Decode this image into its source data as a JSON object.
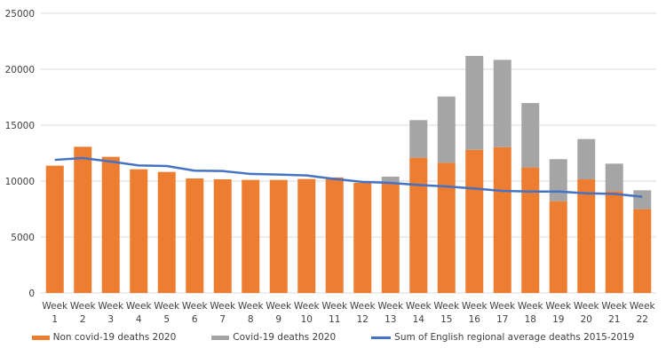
{
  "chart_data": {
    "type": "bar",
    "stacked": true,
    "categories": [
      "Week 1",
      "Week 2",
      "Week 3",
      "Week 4",
      "Week 5",
      "Week 6",
      "Week 7",
      "Week 8",
      "Week 9",
      "Week 10",
      "Week 11",
      "Week 12",
      "Week 13",
      "Week 14",
      "Week 15",
      "Week 16",
      "Week 17",
      "Week 18",
      "Week 19",
      "Week 20",
      "Week 21",
      "Week 22"
    ],
    "category_lines": [
      [
        "Week",
        "1"
      ],
      [
        "Week",
        "2"
      ],
      [
        "Week",
        "3"
      ],
      [
        "Week",
        "4"
      ],
      [
        "Week",
        "5"
      ],
      [
        "Week",
        "6"
      ],
      [
        "Week",
        "7"
      ],
      [
        "Week",
        "8"
      ],
      [
        "Week",
        "9"
      ],
      [
        "Week",
        "10"
      ],
      [
        "Week",
        "11"
      ],
      [
        "Week",
        "12"
      ],
      [
        "Week",
        "13"
      ],
      [
        "Week",
        "14"
      ],
      [
        "Week",
        "15"
      ],
      [
        "Week",
        "16"
      ],
      [
        "Week",
        "17"
      ],
      [
        "Week",
        "18"
      ],
      [
        "Week",
        "19"
      ],
      [
        "Week",
        "20"
      ],
      [
        "Week",
        "21"
      ],
      [
        "Week",
        "22"
      ]
    ],
    "series": [
      {
        "name": "Non covid-19 deaths 2020",
        "type": "bar",
        "color": "#ED7D31",
        "values": [
          11380,
          13070,
          12170,
          11060,
          10820,
          10240,
          10160,
          10110,
          10110,
          10190,
          10330,
          9850,
          9900,
          12090,
          11640,
          12800,
          13040,
          11220,
          8200,
          10160,
          9100,
          7490
        ]
      },
      {
        "name": "Covid-19 deaths 2020",
        "type": "bar",
        "color": "#A5A5A5",
        "values": [
          0,
          0,
          0,
          0,
          0,
          0,
          0,
          0,
          0,
          0,
          0,
          0,
          500,
          3360,
          5920,
          8390,
          7800,
          5760,
          3760,
          3600,
          2460,
          1690
        ]
      },
      {
        "name": "Sum of English regional average deaths 2015-2019",
        "type": "line",
        "color": "#4472C4",
        "values": [
          11900,
          12060,
          11750,
          11400,
          11350,
          10930,
          10900,
          10640,
          10590,
          10510,
          10190,
          9930,
          9840,
          9650,
          9520,
          9340,
          9130,
          9070,
          9070,
          8910,
          8860,
          8600
        ]
      }
    ],
    "yticks": [
      "0",
      "5000",
      "10000",
      "15000",
      "20000",
      "25000"
    ],
    "ylim": [
      0,
      25000
    ],
    "grid": true,
    "legend": "bottom"
  }
}
